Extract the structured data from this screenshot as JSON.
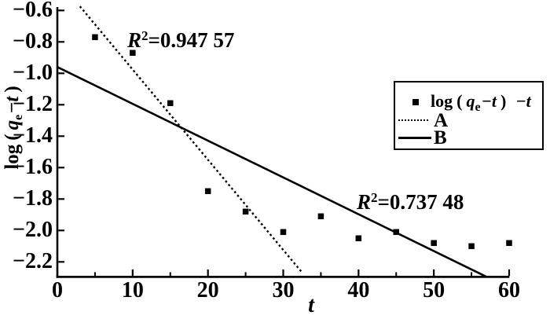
{
  "figure": {
    "background": "#ffffff",
    "foreground": "#000000"
  },
  "chart_data": {
    "type": "scatter",
    "title": "",
    "xlabel": "t",
    "ylabel": "log(qe−t)",
    "xlim": [
      0,
      60
    ],
    "ylim": [
      -2.3,
      -0.58
    ],
    "grid": false,
    "x_major_ticks": [
      0,
      10,
      20,
      30,
      40,
      50,
      60
    ],
    "x_minor_ticks": [
      5,
      15,
      25,
      35,
      45,
      55
    ],
    "y_major_ticks": [
      -0.6,
      -0.8,
      -1.0,
      -1.2,
      -1.4,
      -1.6,
      -1.8,
      -2.0,
      -2.2
    ],
    "x_tick_labels": [
      "0",
      "10",
      "20",
      "30",
      "40",
      "50",
      "60"
    ],
    "y_tick_labels": [
      "−0.6",
      "−0.8",
      "−1.0",
      "−1.2",
      "−1.4",
      "−1.6",
      "−1.8",
      "−2.0",
      "−2.2"
    ],
    "series": [
      {
        "name": "log(qe−t)−t",
        "type": "scatter",
        "marker": "square",
        "color": "#000000",
        "points": [
          [
            5,
            -0.77
          ],
          [
            10,
            -0.87
          ],
          [
            15,
            -1.19
          ],
          [
            20,
            -1.75
          ],
          [
            25,
            -1.88
          ],
          [
            30,
            -2.01
          ],
          [
            35,
            -1.91
          ],
          [
            40,
            -2.05
          ],
          [
            45,
            -2.01
          ],
          [
            50,
            -2.08
          ],
          [
            55,
            -2.1
          ],
          [
            60,
            -2.08
          ]
        ]
      },
      {
        "name": "A",
        "type": "line",
        "style": "dotted",
        "color": "#000000",
        "endpoints": [
          [
            3.0,
            -0.574
          ],
          [
            32.4,
            -2.262
          ]
        ],
        "r_squared": "0.947 57"
      },
      {
        "name": "B",
        "type": "line",
        "style": "solid",
        "color": "#000000",
        "endpoints": [
          [
            0,
            -0.96
          ],
          [
            57.0,
            -2.295
          ]
        ],
        "r_squared": "0.737 48"
      }
    ],
    "legend": {
      "position": "right-middle",
      "entries": [
        {
          "marker": "square",
          "label": "log ( qe−t ) −t"
        },
        {
          "marker": "dotted-line",
          "label": "A"
        },
        {
          "marker": "solid-line",
          "label": "B"
        }
      ]
    },
    "annotations": [
      {
        "text": "R²=0.947 57",
        "near_series": "A"
      },
      {
        "text": "R²=0.737 48",
        "near_series": "B"
      }
    ]
  },
  "labels": {
    "xlabel": "t",
    "ylabel_parts": {
      "log": "log",
      "open": "(",
      "q": "q",
      "sub": "e",
      "minus_t": "−t",
      "close": ")"
    },
    "series_parts": {
      "log": "log",
      "open": "(",
      "q": "q",
      "sub": "e",
      "minus_t": "−t",
      "close": ")",
      "tail": "−t"
    },
    "ann_a": {
      "r": "R",
      "sup": "2",
      "eq": "=0.947 57"
    },
    "ann_b": {
      "r": "R",
      "sup": "2",
      "eq": "=0.737 48"
    }
  }
}
